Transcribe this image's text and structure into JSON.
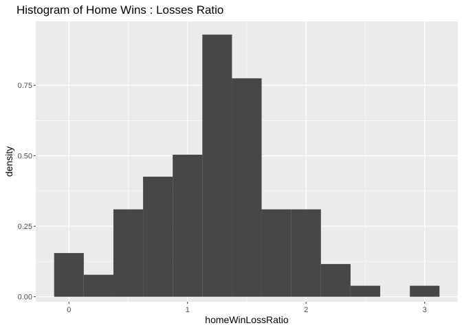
{
  "chart_data": {
    "type": "histogram",
    "title": "Histogram of Home Wins : Losses Ratio",
    "xlabel": "homeWinLossRatio",
    "ylabel": "density",
    "xlim": [
      -0.28,
      3.28
    ],
    "ylim": [
      -0.018,
      0.9772
    ],
    "x_ticks": [
      0,
      1,
      2,
      3
    ],
    "x_tick_labels": [
      "0",
      "1",
      "2",
      "3"
    ],
    "y_ticks": [
      0,
      0.25,
      0.5,
      0.75
    ],
    "y_tick_labels": [
      "0.00",
      "0.25",
      "0.50",
      "0.75"
    ],
    "grid": true,
    "bins": [
      {
        "x0": -0.125,
        "x1": 0.125,
        "density": 0.155
      },
      {
        "x0": 0.125,
        "x1": 0.375,
        "density": 0.078
      },
      {
        "x0": 0.375,
        "x1": 0.625,
        "density": 0.31
      },
      {
        "x0": 0.625,
        "x1": 0.875,
        "density": 0.426
      },
      {
        "x0": 0.875,
        "x1": 1.125,
        "density": 0.504
      },
      {
        "x0": 1.125,
        "x1": 1.375,
        "density": 0.93
      },
      {
        "x0": 1.375,
        "x1": 1.625,
        "density": 0.775
      },
      {
        "x0": 1.625,
        "x1": 1.875,
        "density": 0.31
      },
      {
        "x0": 1.875,
        "x1": 2.125,
        "density": 0.31
      },
      {
        "x0": 2.125,
        "x1": 2.375,
        "density": 0.116
      },
      {
        "x0": 2.375,
        "x1": 2.625,
        "density": 0.039
      },
      {
        "x0": 2.625,
        "x1": 2.875,
        "density": 0
      },
      {
        "x0": 2.875,
        "x1": 3.125,
        "density": 0.039
      }
    ],
    "colors": {
      "panel": "#EBEBEB",
      "grid_major": "#FFFFFF",
      "bar_fill": "#474747"
    }
  }
}
